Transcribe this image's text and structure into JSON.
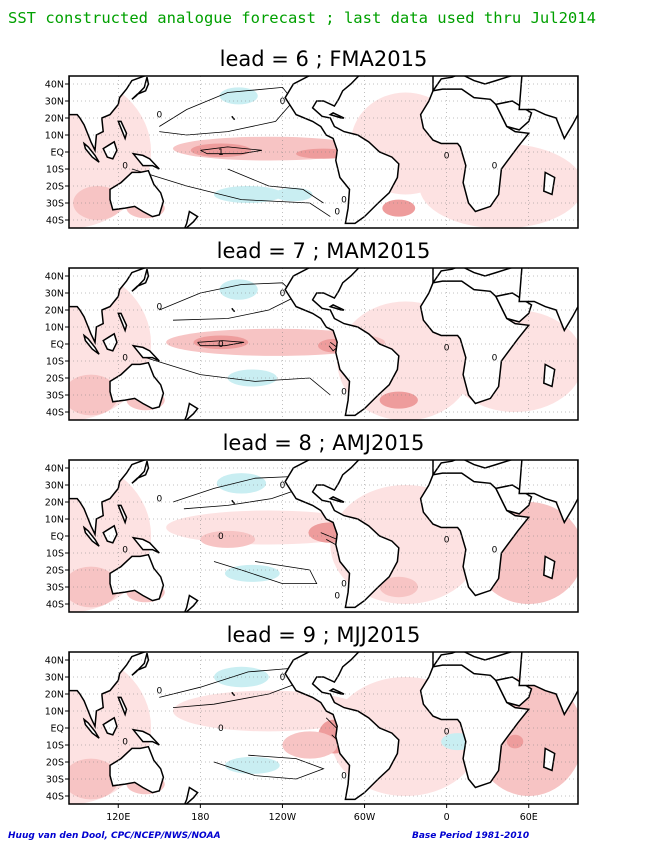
{
  "header": {
    "title": "SST constructed analogue forecast ; last data used thru Jul2014",
    "title_color": "#00a000"
  },
  "footer": {
    "credit": "Huug van den Dool, CPC/NCEP/NWS/NOAA",
    "base_period": "Base Period 1981-2010",
    "color": "#0000d0"
  },
  "colors": {
    "land_line": "#000000",
    "anom_weak_pos": "#fde2e2",
    "anom_pos": "#f7c4c4",
    "anom_strong_pos": "#ee9c9c",
    "anom_neg": "#c9eef2",
    "anom_strong_neg": "#a8e2ea",
    "grid": "#808080"
  },
  "chart_data": [
    {
      "type": "heatmap",
      "title": "lead = 6 ; FMA2015",
      "ytick_labels": [
        "40N",
        "30N",
        "20N",
        "10N",
        "EQ",
        "10S",
        "20S",
        "30S",
        "40S"
      ],
      "contour_labels": [
        "0",
        "0",
        "1",
        "0",
        "0",
        "0",
        "0",
        "0"
      ]
    },
    {
      "type": "heatmap",
      "title": "lead = 7 ; MAM2015",
      "ytick_labels": [
        "40N",
        "30N",
        "20N",
        "10N",
        "EQ",
        "10S",
        "20S",
        "30S",
        "40S"
      ],
      "contour_labels": [
        "0",
        "0",
        "0",
        "0",
        "0",
        "0",
        "0"
      ]
    },
    {
      "type": "heatmap",
      "title": "lead = 8 ; AMJ2015",
      "ytick_labels": [
        "40N",
        "30N",
        "20N",
        "10N",
        "EQ",
        "10S",
        "20S",
        "30S",
        "40S"
      ],
      "contour_labels": [
        "0",
        "0",
        "0",
        "0",
        "0",
        "0",
        "0",
        "0"
      ]
    },
    {
      "type": "heatmap",
      "title": "lead = 9 ; MJJ2015",
      "ytick_labels": [
        "40N",
        "30N",
        "20N",
        "10N",
        "EQ",
        "10S",
        "20S",
        "30S",
        "40S"
      ],
      "xtick_labels": [
        "120E",
        "180",
        "120W",
        "60W",
        "0",
        "60E"
      ],
      "contour_labels": [
        "0",
        "0",
        "0",
        "0",
        "0",
        "0"
      ]
    }
  ]
}
